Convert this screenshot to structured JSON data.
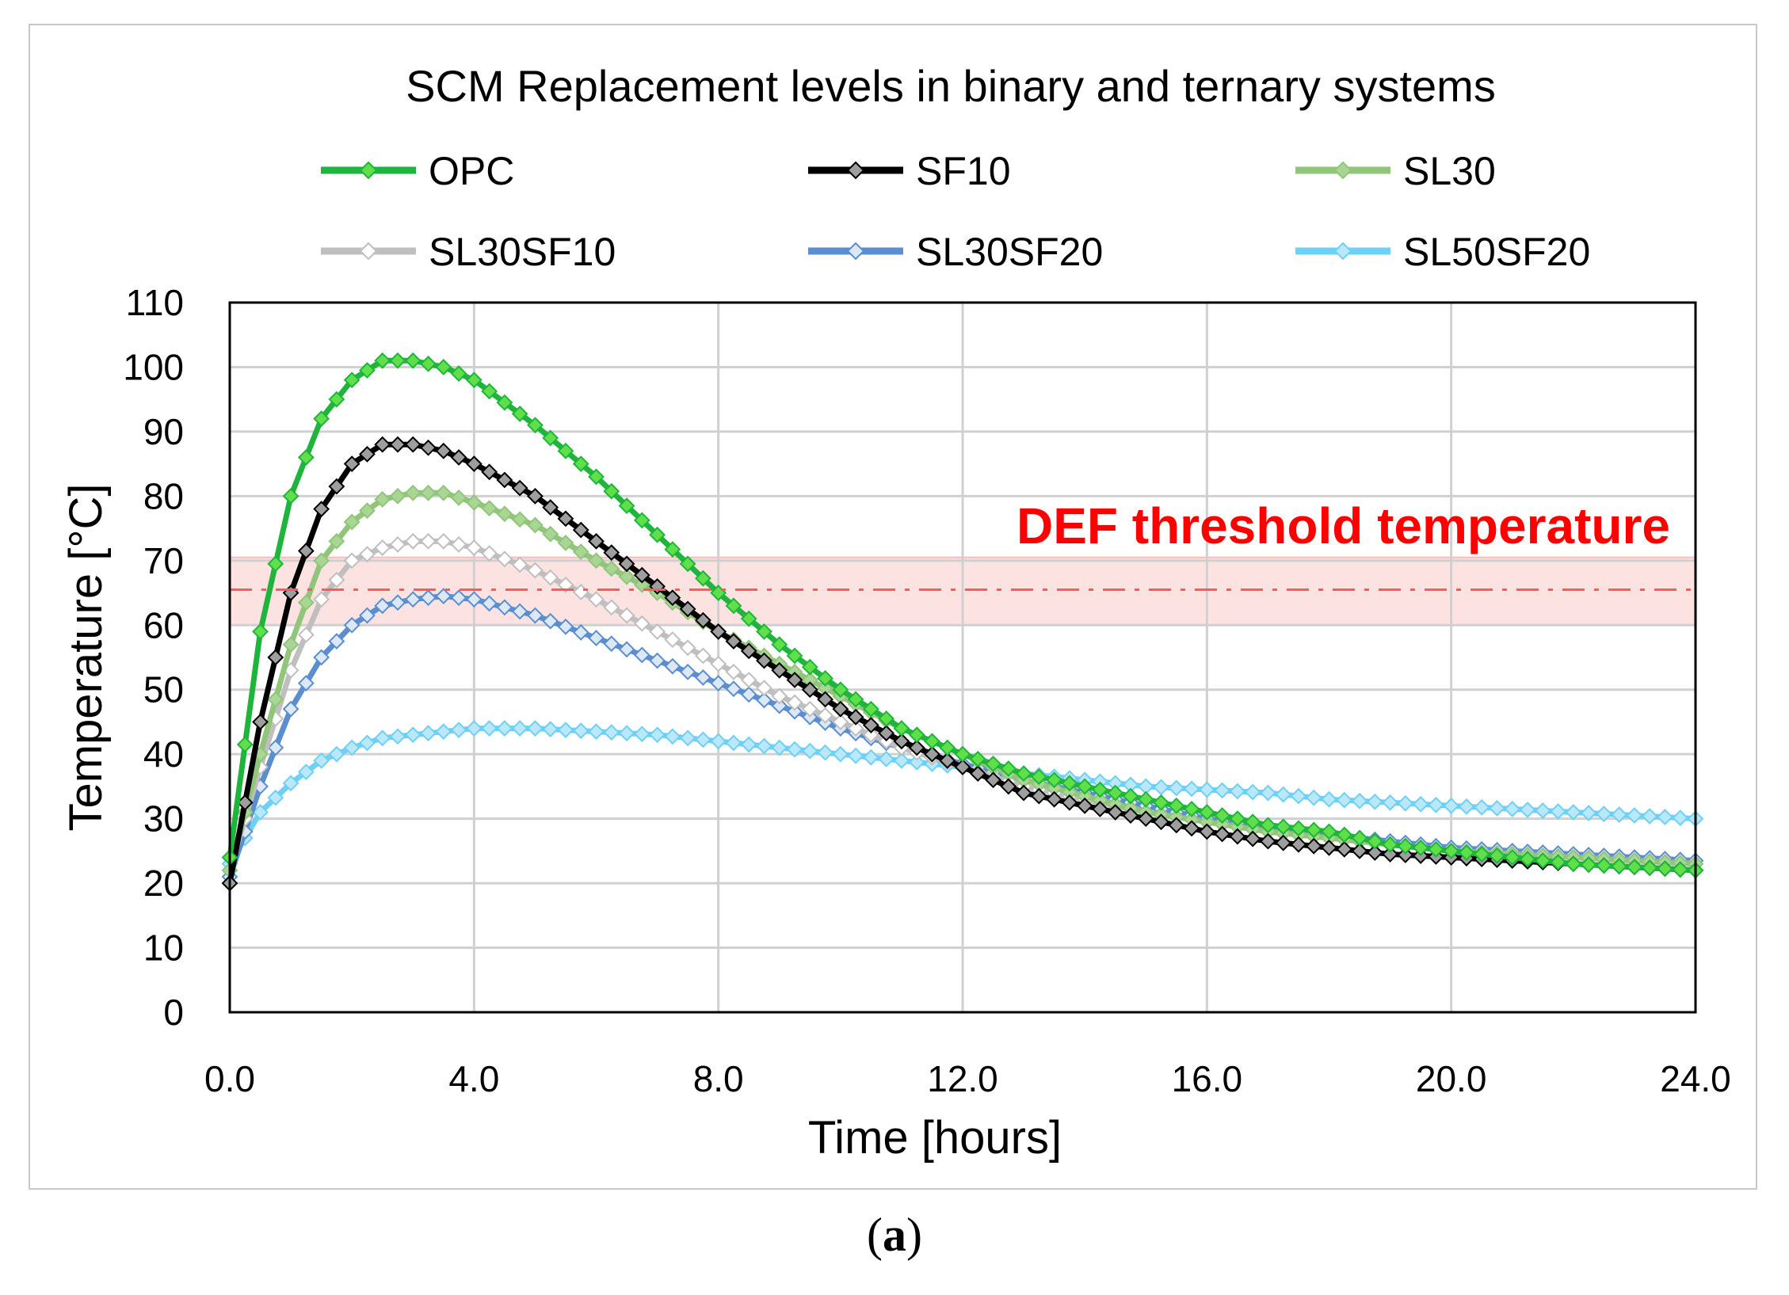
{
  "panel_label": {
    "open": "(",
    "letter": "a",
    "close": ")"
  },
  "chart_data": {
    "type": "line",
    "title": "SCM Replacement levels in binary and ternary systems",
    "xlabel": "Time [hours]",
    "ylabel": "Temperature [°C]",
    "xlim": [
      0,
      24
    ],
    "ylim": [
      0,
      110
    ],
    "x_ticks": [
      0,
      4,
      8,
      12,
      16,
      20,
      24
    ],
    "x_tick_labels": [
      "0.0",
      "4.0",
      "8.0",
      "12.0",
      "16.0",
      "20.0",
      "24.0"
    ],
    "y_ticks": [
      0,
      10,
      20,
      30,
      40,
      50,
      60,
      70,
      80,
      90,
      100,
      110
    ],
    "y_tick_labels": [
      "0",
      "10",
      "20",
      "30",
      "40",
      "50",
      "60",
      "70",
      "80",
      "90",
      "100",
      "110"
    ],
    "grid": true,
    "legend_position": "top",
    "threshold": {
      "label": "DEF threshold temperature",
      "value": 65.5,
      "band": [
        60,
        70.5
      ],
      "line_color": "#ff5a5a",
      "band_color": "#fde2e2",
      "text_color": "#ff0000"
    },
    "x": [
      0,
      0.5,
      1,
      1.5,
      2,
      2.5,
      3,
      3.5,
      4,
      5,
      6,
      7,
      8,
      9,
      10,
      11,
      12,
      13,
      14,
      15,
      16,
      17,
      18,
      19,
      20,
      21,
      22,
      23,
      24
    ],
    "series": [
      {
        "name": "OPC",
        "color": "#1fb53c",
        "marker_fill": "#5fe04a",
        "values": [
          24,
          59,
          80,
          92,
          98,
          101,
          101,
          100,
          98,
          91,
          83,
          74,
          65,
          57,
          50,
          44,
          40,
          37,
          35,
          33,
          31,
          29,
          28,
          26,
          25,
          24,
          23,
          22.5,
          22
        ]
      },
      {
        "name": "SF10",
        "color": "#000000",
        "marker_fill": "#9e9e9e",
        "values": [
          20,
          45,
          65,
          78,
          85,
          88,
          88,
          87,
          85,
          80,
          73,
          66,
          59,
          53,
          47,
          42,
          38,
          34,
          32,
          30,
          28,
          26.5,
          25.5,
          24.5,
          24,
          23.5,
          23,
          22.5,
          22
        ]
      },
      {
        "name": "SL30",
        "color": "#91c57a",
        "marker_fill": "#a9d694",
        "values": [
          22,
          40,
          57,
          70,
          76,
          79.5,
          80.5,
          80.5,
          79,
          75.5,
          70,
          65,
          59,
          54,
          49,
          44,
          40,
          36,
          33.5,
          31,
          29.5,
          28,
          27,
          26,
          25,
          24.5,
          24,
          23.5,
          23
        ]
      },
      {
        "name": "SL30SF10",
        "color": "#bfbfbf",
        "marker_fill": "#ffffff",
        "values": [
          22,
          38,
          53,
          64,
          70,
          72,
          73,
          73,
          72,
          68.5,
          64,
          59,
          54,
          49,
          45,
          41,
          38,
          35,
          33,
          31,
          29.5,
          28,
          27,
          26,
          25,
          24.5,
          24,
          23.5,
          23
        ]
      },
      {
        "name": "SL30SF20",
        "color": "#5b8ecf",
        "marker_fill": "#dde8f7",
        "values": [
          21,
          35,
          47,
          55,
          60,
          63,
          64,
          64.5,
          64,
          61.5,
          58,
          54.5,
          51,
          47.5,
          44,
          41,
          38.5,
          36,
          34,
          32,
          30,
          28.5,
          27.5,
          26.5,
          25.5,
          25,
          24.5,
          24,
          23.5
        ]
      },
      {
        "name": "SL50SF20",
        "color": "#6ed0f5",
        "marker_fill": "#b9e8fb",
        "values": [
          23,
          31,
          35.5,
          39,
          41,
          42.5,
          43,
          43.5,
          44,
          44,
          43.5,
          43,
          42,
          41,
          40,
          39,
          38,
          37,
          36,
          35,
          34.5,
          34,
          33,
          32.5,
          32,
          31.5,
          31,
          30.5,
          30
        ]
      }
    ]
  }
}
